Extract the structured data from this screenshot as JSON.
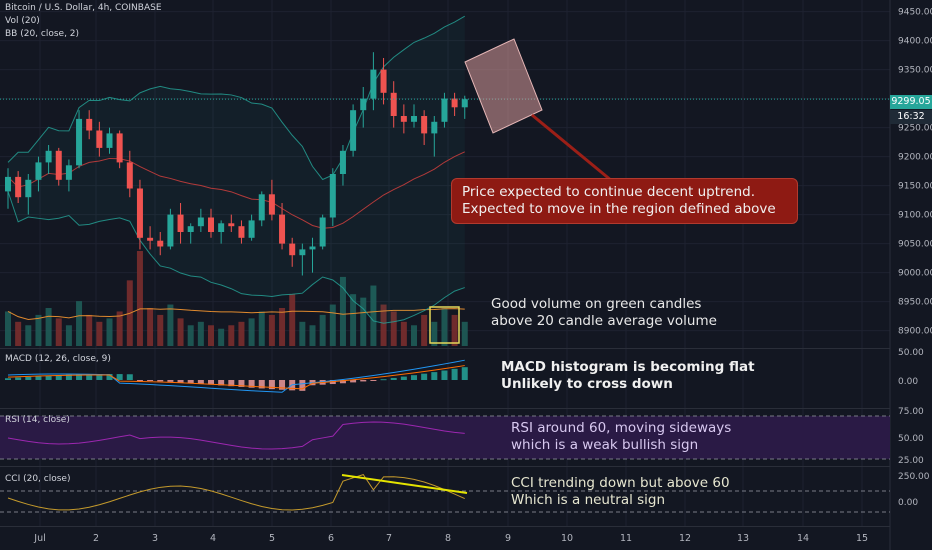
{
  "header": {
    "title": "Bitcoin / U.S. Dollar, 4h, COINBASE",
    "indicator_vol": "Vol (20)",
    "indicator_bb": "BB (20, close, 2)"
  },
  "price_scale": [
    "9450.00",
    "9400.00",
    "9350.00",
    "9300.00",
    "9250.00",
    "9200.00",
    "9150.00",
    "9100.00",
    "9050.00",
    "9000.00",
    "8950.00",
    "8900.00"
  ],
  "last_price_tag": "9299.05",
  "countdown_tag": "16:32",
  "panes": {
    "macd": {
      "label": "MACD (12, 26, close, 9)",
      "scale": [
        "50.00",
        "0.00"
      ]
    },
    "rsi": {
      "label": "RSI (14, close)",
      "scale": [
        "75.00",
        "50.00",
        "25.00"
      ]
    },
    "cci": {
      "label": "CCI (20, close)",
      "scale": [
        "250.00",
        "0.00"
      ]
    }
  },
  "time_axis": [
    "Jul",
    "2",
    "3",
    "4",
    "5",
    "6",
    "7",
    "8",
    "9",
    "10",
    "11",
    "12",
    "13",
    "14",
    "15"
  ],
  "annotations": {
    "price_box": [
      "Price expected to continue decent uptrend.",
      "Expected to move in the region defined above"
    ],
    "volume": [
      "Good volume on green candles",
      "above 20 candle average volume"
    ],
    "macd": [
      "MACD histogram is becoming flat",
      "Unlikely to cross down"
    ],
    "rsi": [
      "RSI around 60, moving sideways",
      "which is a weak bullish sign"
    ],
    "cci": [
      "CCI trending down but above 60",
      "Which is a neutral sign"
    ]
  },
  "colors": {
    "background": "#131722",
    "up": "#26a69a",
    "down": "#ef5350",
    "bb_band": "#26a69a",
    "bb_basis": "#b23a3a",
    "rsi_line": "#9c27b0",
    "rsi_fill": "#2a1a45",
    "cci_line": "#c49a2c",
    "annotation_box": "#8e1a13",
    "trendline": "#e4e400"
  },
  "chart_data": {
    "type": "candlestick",
    "title": "Bitcoin / U.S. Dollar, 4h, COINBASE",
    "ylim": [
      8870,
      9470
    ],
    "x_ticks": [
      "Jul",
      "2",
      "3",
      "4",
      "5",
      "6",
      "7",
      "8",
      "9",
      "10",
      "11",
      "12",
      "13",
      "14",
      "15"
    ],
    "candles": [
      [
        9140,
        9180,
        9110,
        9165
      ],
      [
        9165,
        9175,
        9120,
        9130
      ],
      [
        9130,
        9170,
        9100,
        9160
      ],
      [
        9160,
        9200,
        9140,
        9190
      ],
      [
        9190,
        9220,
        9170,
        9210
      ],
      [
        9210,
        9215,
        9150,
        9160
      ],
      [
        9160,
        9195,
        9140,
        9185
      ],
      [
        9185,
        9280,
        9180,
        9265
      ],
      [
        9265,
        9280,
        9230,
        9245
      ],
      [
        9245,
        9260,
        9200,
        9215
      ],
      [
        9215,
        9250,
        9205,
        9240
      ],
      [
        9240,
        9245,
        9180,
        9190
      ],
      [
        9190,
        9210,
        9130,
        9145
      ],
      [
        9145,
        9160,
        9040,
        9060
      ],
      [
        9060,
        9080,
        9040,
        9055
      ],
      [
        9055,
        9070,
        9030,
        9045
      ],
      [
        9045,
        9110,
        9040,
        9100
      ],
      [
        9100,
        9120,
        9050,
        9070
      ],
      [
        9070,
        9085,
        9050,
        9080
      ],
      [
        9080,
        9110,
        9070,
        9095
      ],
      [
        9095,
        9110,
        9060,
        9070
      ],
      [
        9070,
        9090,
        9050,
        9085
      ],
      [
        9085,
        9100,
        9070,
        9080
      ],
      [
        9080,
        9090,
        9050,
        9060
      ],
      [
        9060,
        9100,
        9055,
        9090
      ],
      [
        9090,
        9140,
        9080,
        9135
      ],
      [
        9135,
        9160,
        9090,
        9100
      ],
      [
        9100,
        9120,
        9040,
        9050
      ],
      [
        9050,
        9060,
        9010,
        9030
      ],
      [
        9030,
        9050,
        8995,
        9040
      ],
      [
        9040,
        9060,
        9000,
        9045
      ],
      [
        9045,
        9100,
        9040,
        9095
      ],
      [
        9095,
        9180,
        9080,
        9170
      ],
      [
        9170,
        9220,
        9150,
        9210
      ],
      [
        9210,
        9290,
        9200,
        9280
      ],
      [
        9280,
        9320,
        9250,
        9300
      ],
      [
        9300,
        9380,
        9280,
        9350
      ],
      [
        9350,
        9370,
        9290,
        9310
      ],
      [
        9310,
        9330,
        9250,
        9270
      ],
      [
        9270,
        9290,
        9240,
        9260
      ],
      [
        9260,
        9290,
        9250,
        9270
      ],
      [
        9270,
        9280,
        9220,
        9240
      ],
      [
        9240,
        9270,
        9200,
        9260
      ],
      [
        9260,
        9310,
        9250,
        9300
      ],
      [
        9300,
        9310,
        9270,
        9285
      ],
      [
        9285,
        9305,
        9265,
        9299
      ]
    ],
    "volume": [
      20,
      14,
      12,
      18,
      22,
      16,
      12,
      26,
      18,
      14,
      16,
      20,
      38,
      55,
      22,
      18,
      24,
      16,
      12,
      14,
      12,
      10,
      12,
      14,
      16,
      20,
      18,
      22,
      30,
      14,
      12,
      18,
      24,
      40,
      30,
      28,
      35,
      24,
      20,
      14,
      12,
      18,
      14,
      22,
      18,
      14
    ],
    "annotation_region_price": [
      9260,
      9410
    ]
  }
}
